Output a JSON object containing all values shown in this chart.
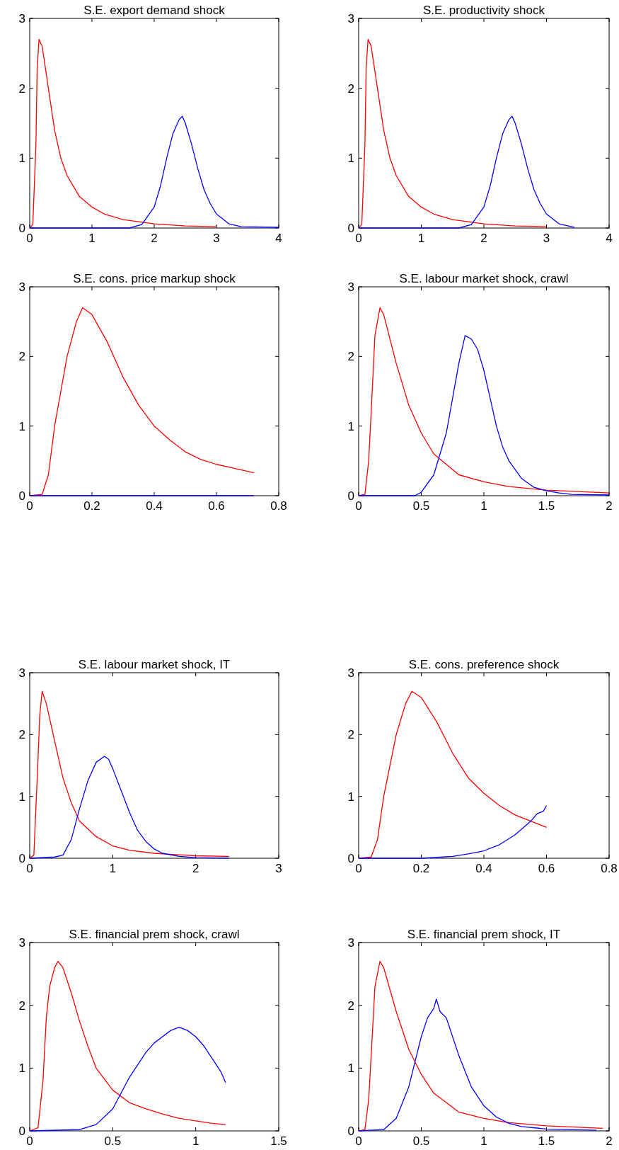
{
  "chart_data": [
    {
      "type": "line",
      "title": "S.E. export demand shock",
      "xlim": [
        0,
        4
      ],
      "ylim": [
        0,
        3
      ],
      "xticks": [
        0,
        1,
        2,
        3,
        4
      ],
      "yticks": [
        0,
        1,
        2,
        3
      ],
      "series": [
        {
          "color": "#ff0000",
          "x": [
            0,
            0.05,
            0.1,
            0.12,
            0.15,
            0.2,
            0.3,
            0.4,
            0.5,
            0.6,
            0.8,
            1,
            1.2,
            1.5,
            2,
            2.5,
            3
          ],
          "values": [
            0,
            0.05,
            1.2,
            2.3,
            2.7,
            2.6,
            2,
            1.4,
            1,
            0.75,
            0.45,
            0.3,
            0.2,
            0.12,
            0.06,
            0.03,
            0.02
          ]
        },
        {
          "color": "#0000ff",
          "x": [
            0,
            1.6,
            1.8,
            2,
            2.1,
            2.2,
            2.3,
            2.4,
            2.45,
            2.5,
            2.6,
            2.7,
            2.8,
            2.9,
            3,
            3.2,
            3.4,
            4
          ],
          "values": [
            0,
            0,
            0.05,
            0.3,
            0.6,
            1,
            1.35,
            1.55,
            1.6,
            1.5,
            1.2,
            0.85,
            0.55,
            0.35,
            0.2,
            0.06,
            0.02,
            0.01
          ]
        }
      ]
    },
    {
      "type": "line",
      "title": "S.E. productivity shock",
      "xlim": [
        0,
        4
      ],
      "ylim": [
        0,
        3
      ],
      "xticks": [
        0,
        1,
        2,
        3,
        4
      ],
      "yticks": [
        0,
        1,
        2,
        3
      ],
      "series": [
        {
          "color": "#ff0000",
          "x": [
            0,
            0.05,
            0.1,
            0.12,
            0.15,
            0.2,
            0.3,
            0.4,
            0.5,
            0.6,
            0.8,
            1,
            1.2,
            1.5,
            2,
            2.5,
            3
          ],
          "values": [
            0,
            0.05,
            1.2,
            2.3,
            2.7,
            2.6,
            2,
            1.4,
            1,
            0.75,
            0.45,
            0.3,
            0.2,
            0.12,
            0.06,
            0.03,
            0.02
          ]
        },
        {
          "color": "#0000ff",
          "x": [
            0,
            1.6,
            1.8,
            2,
            2.1,
            2.2,
            2.3,
            2.4,
            2.45,
            2.5,
            2.6,
            2.7,
            2.8,
            2.9,
            3,
            3.2,
            3.45
          ],
          "values": [
            0,
            0,
            0.05,
            0.3,
            0.6,
            1,
            1.35,
            1.55,
            1.6,
            1.5,
            1.2,
            0.85,
            0.55,
            0.35,
            0.2,
            0.06,
            0.01
          ]
        }
      ]
    },
    {
      "type": "line",
      "title": "S.E. cons. price markup shock",
      "xlim": [
        0,
        0.8
      ],
      "ylim": [
        0,
        3
      ],
      "xticks": [
        0,
        0.2,
        0.4,
        0.6,
        0.8
      ],
      "yticks": [
        0,
        1,
        2,
        3
      ],
      "series": [
        {
          "color": "#ff0000",
          "x": [
            0,
            0.04,
            0.06,
            0.08,
            0.1,
            0.12,
            0.15,
            0.17,
            0.2,
            0.25,
            0.3,
            0.35,
            0.4,
            0.45,
            0.5,
            0.55,
            0.6,
            0.65,
            0.7,
            0.72
          ],
          "values": [
            0,
            0.02,
            0.3,
            1,
            1.5,
            2,
            2.5,
            2.7,
            2.6,
            2.2,
            1.7,
            1.3,
            1,
            0.8,
            0.63,
            0.52,
            0.45,
            0.4,
            0.35,
            0.33
          ]
        },
        {
          "color": "#0000ff",
          "x": [
            0,
            0.72
          ],
          "values": [
            0,
            0
          ]
        }
      ]
    },
    {
      "type": "line",
      "title": "S.E. labour market shock, crawl",
      "xlim": [
        0,
        2
      ],
      "ylim": [
        0,
        3
      ],
      "xticks": [
        0,
        0.5,
        1,
        1.5,
        2
      ],
      "yticks": [
        0,
        1,
        2,
        3
      ],
      "series": [
        {
          "color": "#ff0000",
          "x": [
            0,
            0.05,
            0.08,
            0.1,
            0.13,
            0.17,
            0.2,
            0.3,
            0.4,
            0.5,
            0.6,
            0.7,
            0.8,
            1,
            1.2,
            1.5,
            2
          ],
          "values": [
            0,
            0.02,
            0.5,
            1.2,
            2.3,
            2.7,
            2.6,
            1.9,
            1.3,
            0.9,
            0.6,
            0.45,
            0.3,
            0.2,
            0.13,
            0.08,
            0.04
          ]
        },
        {
          "color": "#0000ff",
          "x": [
            0,
            0.45,
            0.5,
            0.6,
            0.7,
            0.75,
            0.8,
            0.85,
            0.9,
            0.95,
            1,
            1.05,
            1.1,
            1.15,
            1.2,
            1.3,
            1.4,
            1.5,
            1.6,
            1.7,
            2
          ],
          "values": [
            0,
            0,
            0.05,
            0.3,
            0.9,
            1.4,
            1.9,
            2.3,
            2.25,
            2.1,
            1.8,
            1.4,
            1,
            0.7,
            0.5,
            0.25,
            0.12,
            0.07,
            0.04,
            0.02,
            0.01
          ]
        }
      ]
    },
    {
      "type": "line",
      "title": "S.E. labour market shock, IT",
      "xlim": [
        0,
        3
      ],
      "ylim": [
        0,
        3
      ],
      "xticks": [
        0,
        1,
        2,
        3
      ],
      "yticks": [
        0,
        1,
        2,
        3
      ],
      "series": [
        {
          "color": "#ff0000",
          "x": [
            0,
            0.05,
            0.1,
            0.12,
            0.15,
            0.2,
            0.3,
            0.4,
            0.5,
            0.6,
            0.8,
            1,
            1.2,
            1.5,
            2,
            2.4
          ],
          "values": [
            0,
            0.05,
            1.6,
            2.3,
            2.7,
            2.5,
            1.9,
            1.3,
            0.9,
            0.6,
            0.35,
            0.2,
            0.13,
            0.08,
            0.04,
            0.03
          ]
        },
        {
          "color": "#0000ff",
          "x": [
            0,
            0.3,
            0.4,
            0.5,
            0.6,
            0.7,
            0.8,
            0.9,
            0.95,
            1,
            1.1,
            1.2,
            1.3,
            1.4,
            1.5,
            1.6,
            1.8,
            2,
            2.4
          ],
          "values": [
            0,
            0.02,
            0.05,
            0.3,
            0.8,
            1.25,
            1.55,
            1.65,
            1.6,
            1.45,
            1.1,
            0.75,
            0.45,
            0.27,
            0.15,
            0.08,
            0.03,
            0.01,
            0
          ]
        }
      ]
    },
    {
      "type": "line",
      "title": "S.E. cons. preference shock",
      "xlim": [
        0,
        0.8
      ],
      "ylim": [
        0,
        3
      ],
      "xticks": [
        0,
        0.2,
        0.4,
        0.6,
        0.8
      ],
      "yticks": [
        0,
        1,
        2,
        3
      ],
      "series": [
        {
          "color": "#ff0000",
          "x": [
            0,
            0.04,
            0.06,
            0.08,
            0.1,
            0.12,
            0.15,
            0.17,
            0.2,
            0.25,
            0.3,
            0.35,
            0.4,
            0.45,
            0.5,
            0.55,
            0.6
          ],
          "values": [
            0,
            0.02,
            0.3,
            1,
            1.5,
            2,
            2.5,
            2.7,
            2.6,
            2.2,
            1.7,
            1.3,
            1.05,
            0.85,
            0.7,
            0.6,
            0.5
          ]
        },
        {
          "color": "#0000ff",
          "x": [
            0,
            0.2,
            0.3,
            0.35,
            0.4,
            0.45,
            0.5,
            0.55,
            0.57,
            0.59,
            0.6
          ],
          "values": [
            0,
            0,
            0.03,
            0.07,
            0.12,
            0.22,
            0.38,
            0.6,
            0.72,
            0.76,
            0.85
          ]
        }
      ]
    },
    {
      "type": "line",
      "title": "S.E. financial prem shock, crawl",
      "xlim": [
        0,
        1.5
      ],
      "ylim": [
        0,
        3
      ],
      "xticks": [
        0,
        0.5,
        1,
        1.5
      ],
      "yticks": [
        0,
        1,
        2,
        3
      ],
      "series": [
        {
          "color": "#ff0000",
          "x": [
            0,
            0.05,
            0.08,
            0.1,
            0.12,
            0.15,
            0.17,
            0.2,
            0.25,
            0.3,
            0.35,
            0.4,
            0.5,
            0.6,
            0.7,
            0.8,
            0.9,
            1,
            1.1,
            1.18
          ],
          "values": [
            0,
            0.05,
            0.8,
            1.8,
            2.3,
            2.6,
            2.7,
            2.6,
            2.2,
            1.75,
            1.35,
            1,
            0.65,
            0.45,
            0.35,
            0.27,
            0.2,
            0.16,
            0.12,
            0.1
          ]
        },
        {
          "color": "#0000ff",
          "x": [
            0,
            0.3,
            0.4,
            0.5,
            0.55,
            0.6,
            0.65,
            0.7,
            0.75,
            0.8,
            0.85,
            0.9,
            0.95,
            1,
            1.05,
            1.1,
            1.15,
            1.18
          ],
          "values": [
            0,
            0.02,
            0.1,
            0.35,
            0.6,
            0.85,
            1.05,
            1.25,
            1.4,
            1.5,
            1.6,
            1.65,
            1.6,
            1.5,
            1.35,
            1.15,
            0.95,
            0.77
          ]
        }
      ]
    },
    {
      "type": "line",
      "title": "S.E. financial prem shock, IT",
      "xlim": [
        0,
        2
      ],
      "ylim": [
        0,
        3
      ],
      "xticks": [
        0,
        0.5,
        1,
        1.5,
        2
      ],
      "yticks": [
        0,
        1,
        2,
        3
      ],
      "series": [
        {
          "color": "#ff0000",
          "x": [
            0,
            0.05,
            0.08,
            0.1,
            0.13,
            0.17,
            0.2,
            0.3,
            0.4,
            0.5,
            0.6,
            0.7,
            0.8,
            1,
            1.2,
            1.5,
            1.95
          ],
          "values": [
            0,
            0.02,
            0.5,
            1.2,
            2.3,
            2.7,
            2.6,
            1.9,
            1.3,
            0.9,
            0.6,
            0.45,
            0.3,
            0.2,
            0.13,
            0.08,
            0.04
          ]
        },
        {
          "color": "#0000ff",
          "x": [
            0,
            0.2,
            0.3,
            0.4,
            0.45,
            0.5,
            0.55,
            0.6,
            0.62,
            0.65,
            0.7,
            0.75,
            0.8,
            0.9,
            1,
            1.1,
            1.2,
            1.3,
            1.5,
            1.9
          ],
          "values": [
            0,
            0.02,
            0.2,
            0.7,
            1.1,
            1.5,
            1.8,
            1.95,
            2.1,
            1.9,
            1.8,
            1.5,
            1.2,
            0.7,
            0.4,
            0.22,
            0.12,
            0.07,
            0.03,
            0.01
          ]
        }
      ]
    }
  ]
}
